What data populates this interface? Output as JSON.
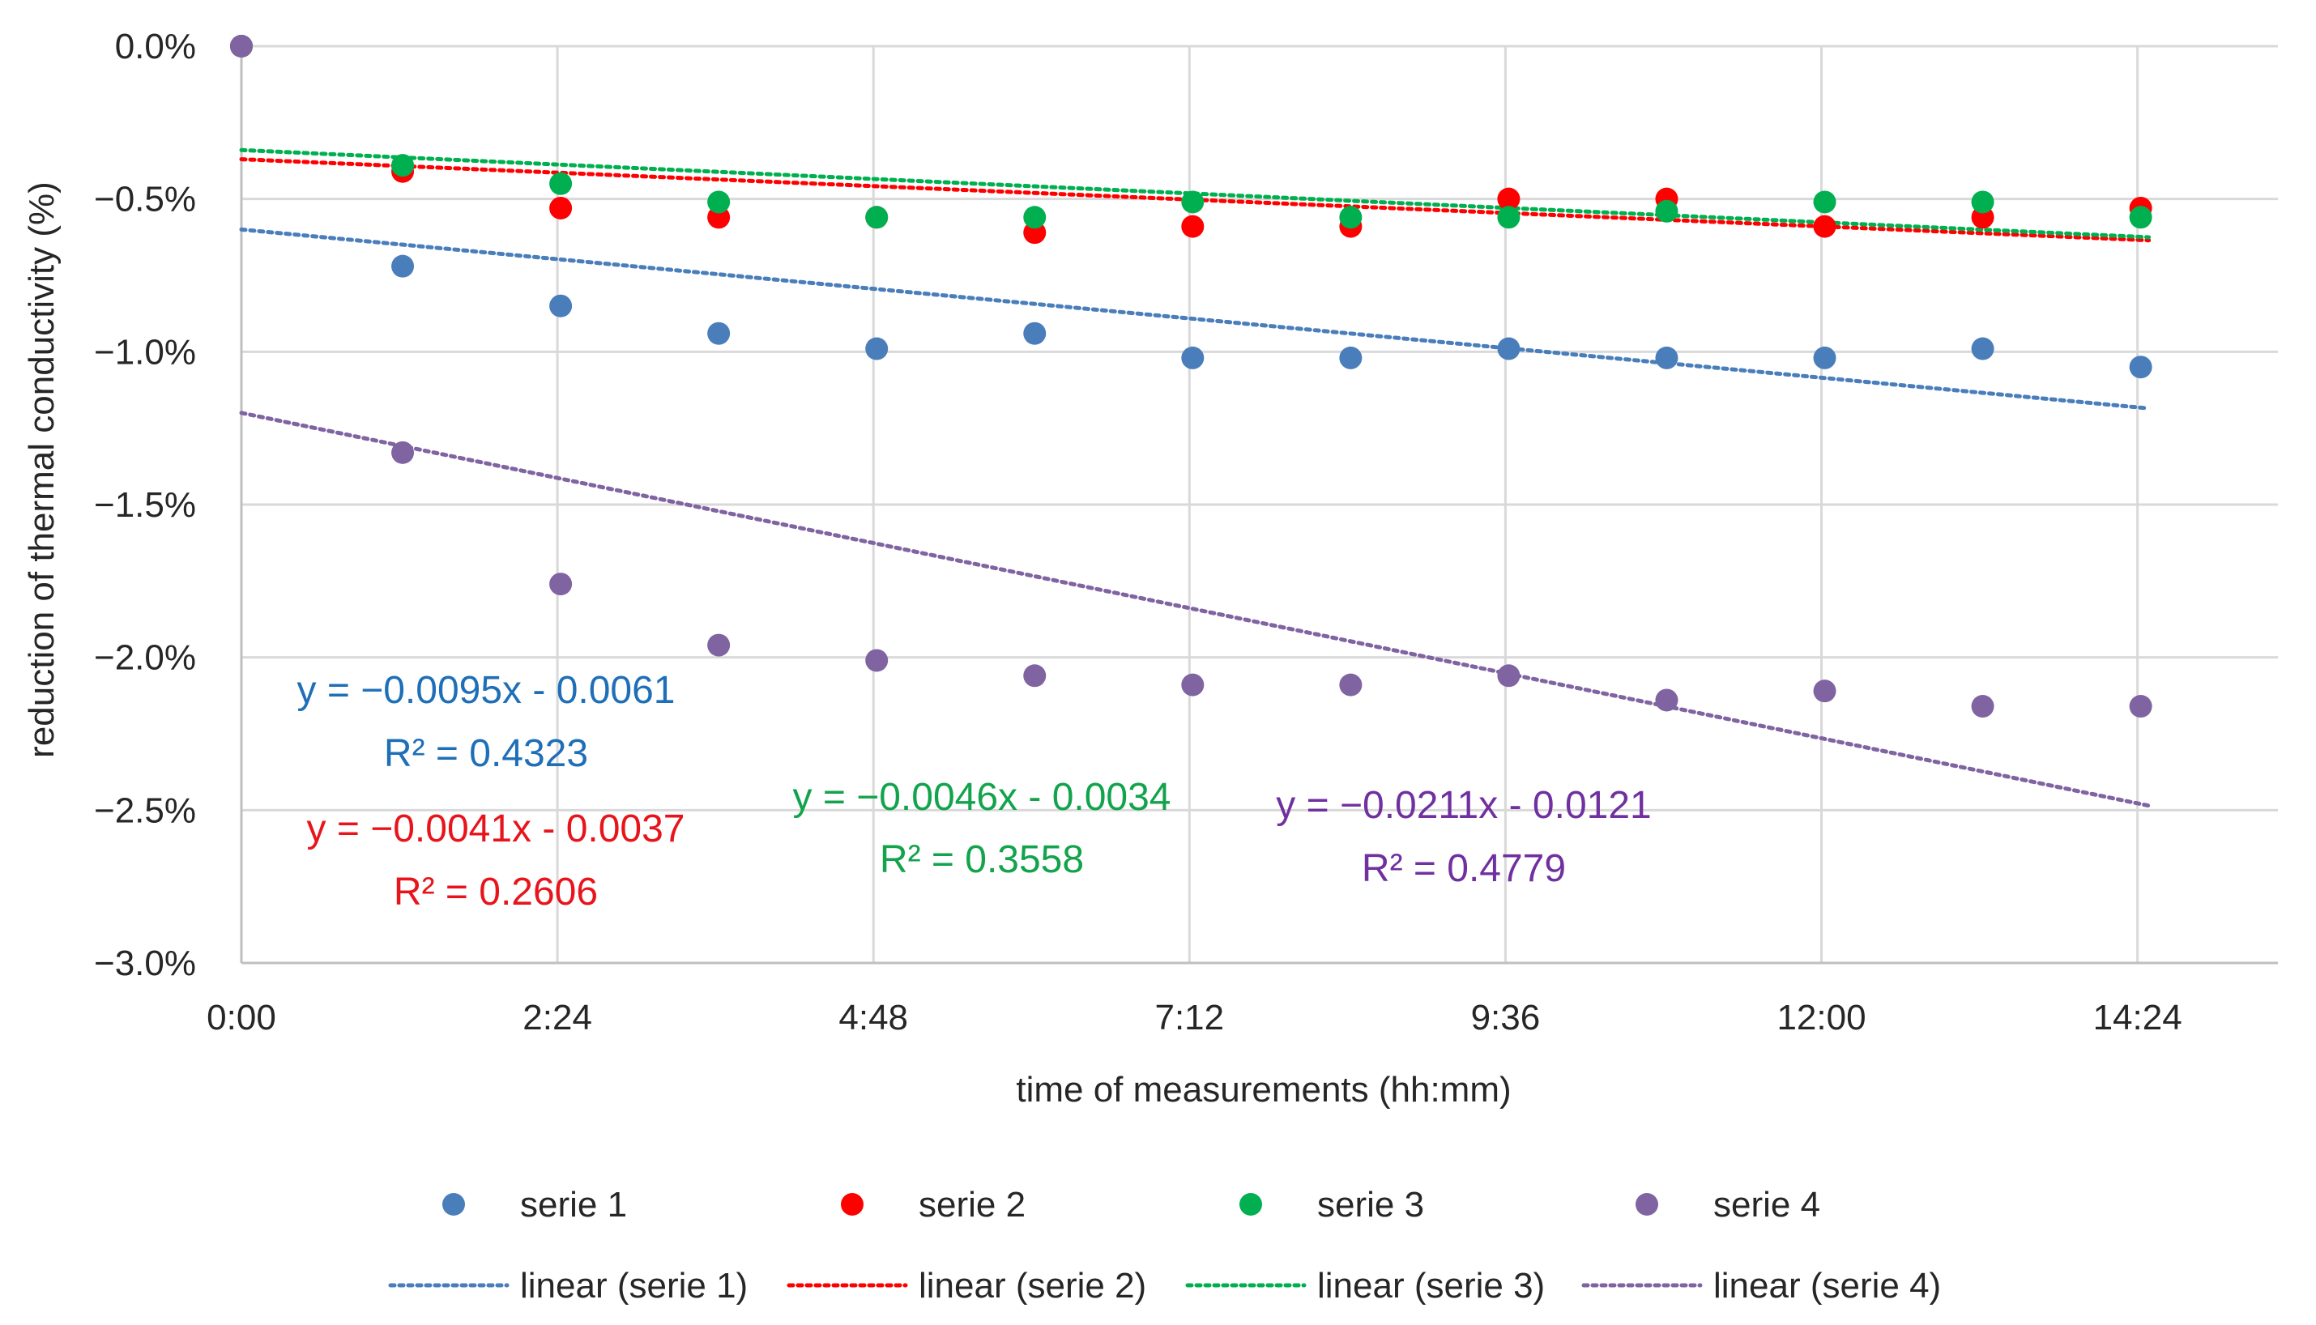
{
  "chart_data": {
    "type": "scatter",
    "title": "",
    "xlabel": "time of measurements (hh:mm)",
    "ylabel": "reduction of thermal conductivity (%)",
    "xlim_minutes": [
      0,
      928
    ],
    "ylim": [
      -3.0,
      0.0
    ],
    "x_ticks": [
      {
        "label": "0:00",
        "minutes": 0
      },
      {
        "label": "2:24",
        "minutes": 144
      },
      {
        "label": "4:48",
        "minutes": 288
      },
      {
        "label": "7:12",
        "minutes": 432
      },
      {
        "label": "9:36",
        "minutes": 576
      },
      {
        "label": "12:00",
        "minutes": 720
      },
      {
        "label": "14:24",
        "minutes": 864
      }
    ],
    "y_ticks": [
      {
        "label": "0.0%",
        "value": 0.0
      },
      {
        "label": "−0.5%",
        "value": -0.5
      },
      {
        "label": "−1.0%",
        "value": -1.0
      },
      {
        "label": "−1.5%",
        "value": -1.5
      },
      {
        "label": "−2.0%",
        "value": -2.0
      },
      {
        "label": "−2.5%",
        "value": -2.5
      },
      {
        "label": "−3.0%",
        "value": -3.0
      }
    ],
    "grid": true,
    "legend_position": "bottom",
    "x_minutes": [
      0,
      72,
      144,
      216,
      288,
      360,
      432,
      504,
      576,
      648,
      720,
      792,
      864
    ],
    "series": [
      {
        "name": "serie 1",
        "color": "#4A7EBB",
        "values": [
          0.0,
          -0.72,
          -0.85,
          -0.94,
          -0.99,
          -0.94,
          -1.02,
          -1.02,
          -0.99,
          -1.02,
          -1.02,
          -0.99,
          -1.05
        ],
        "trend": {
          "name": "linear (serie 1)",
          "y_start": -0.6,
          "y_end": -1.18,
          "equation": "y = −0.0095x - 0.0061",
          "r2": "R² = 0.4323",
          "text_color": "#1F6FB8"
        }
      },
      {
        "name": "serie 2",
        "color": "#FF0000",
        "values": [
          0.0,
          -0.41,
          -0.53,
          -0.56,
          -0.56,
          -0.61,
          -0.59,
          -0.59,
          -0.5,
          -0.5,
          -0.59,
          -0.56,
          -0.53
        ],
        "trend": {
          "name": "linear (serie 2)",
          "y_start": -0.37,
          "y_end": -0.63,
          "equation": "y = −0.0041x - 0.0037",
          "r2": "R² = 0.2606",
          "text_color": "#E8141B"
        }
      },
      {
        "name": "serie 3",
        "color": "#00B050",
        "values": [
          0.0,
          -0.39,
          -0.45,
          -0.51,
          -0.56,
          -0.56,
          -0.51,
          -0.56,
          -0.56,
          -0.54,
          -0.51,
          -0.51,
          -0.56
        ],
        "trend": {
          "name": "linear (serie 3)",
          "y_start": -0.34,
          "y_end": -0.62,
          "equation": "y = −0.0046x - 0.0034",
          "r2": "R² = 0.3558",
          "text_color": "#12A34C"
        }
      },
      {
        "name": "serie 4",
        "color": "#8064A2",
        "values": [
          0.0,
          -1.33,
          -1.76,
          -1.96,
          -2.01,
          -2.06,
          -2.09,
          -2.09,
          -2.06,
          -2.14,
          -2.11,
          -2.16,
          -2.16
        ],
        "trend": {
          "name": "linear (serie 4)",
          "y_start": -1.2,
          "y_end": -2.48,
          "equation": "y = −0.0211x - 0.0121",
          "r2": "R² = 0.4779",
          "text_color": "#7030A0"
        }
      }
    ]
  }
}
